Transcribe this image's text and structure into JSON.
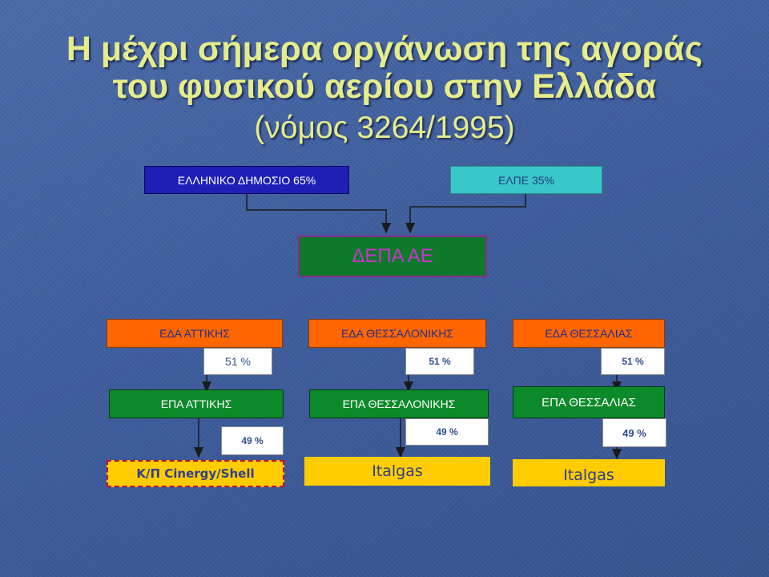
{
  "title": {
    "line1": "Η μέχρι σήμερα οργάνωση της αγοράς",
    "line2": "του φυσικού αερίου στην Ελλάδα",
    "line3": "(νόμος 3264/1995)"
  },
  "owners": {
    "state": "ΕΛΛΗΝΙΚΟ ΔΗΜΟΣΙΟ 65%",
    "elpe": "ΕΛΠΕ 35%"
  },
  "depa": "ΔΕΠΑ ΑΕ",
  "columns": [
    {
      "eda": "ΕΔΑ ΑΤΤΙΚΗΣ",
      "eda_pct": "51 %",
      "epa": "ΕΠΑ ΑΤΤΙΚΗΣ",
      "epa_pct": "49 %",
      "partner": "Κ/Π Cinergy/Shell"
    },
    {
      "eda": "ΕΔΑ ΘΕΣΣΑΛΟΝΙΚΗΣ",
      "eda_pct": "51 %",
      "epa": "ΕΠΑ ΘΕΣΣΑΛΟΝΙΚΗΣ",
      "epa_pct": "49 %",
      "partner": "Italgas"
    },
    {
      "eda": "ΕΔΑ ΘΕΣΣΑΛΙΑΣ",
      "eda_pct": "51 %",
      "epa": "ΕΠΑ ΘΕΣΣΑΛΙΑΣ",
      "epa_pct": "49 %",
      "partner": "Italgas"
    }
  ],
  "colors": {
    "title": "#e6ec8a",
    "state_box": "#1f1fb8",
    "elpe_box": "#3ac7c7",
    "depa_box": "#0c7a2a",
    "depa_text": "#cc33cc",
    "eda_box": "#ff6600",
    "epa_box": "#0c8a2a",
    "partner_box": "#ffcc00"
  }
}
